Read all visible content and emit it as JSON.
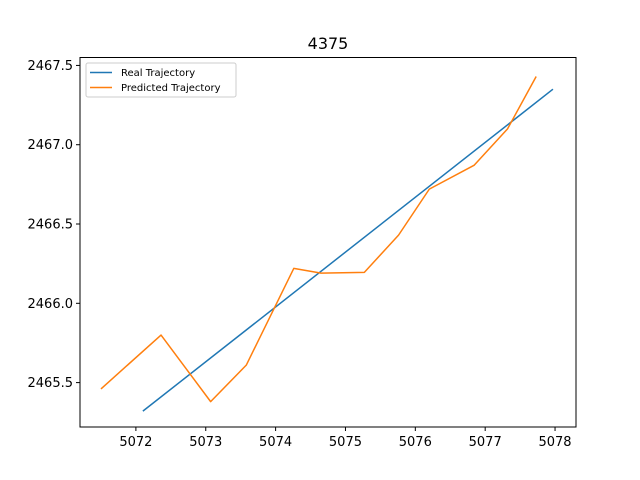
{
  "chart_data": {
    "type": "line",
    "title": "4375",
    "xlabel": "",
    "ylabel": "",
    "xlim": [
      5071.2,
      5078.3
    ],
    "ylim": [
      2465.22,
      2467.55
    ],
    "xticks": [
      5072,
      5073,
      5074,
      5075,
      5076,
      5077,
      5078
    ],
    "yticks": [
      2465.5,
      2466.0,
      2466.5,
      2467.0,
      2467.5
    ],
    "ytick_labels": [
      "2465.5",
      "2466.0",
      "2466.5",
      "2467.0",
      "2467.5"
    ],
    "grid": false,
    "legend_position": "top-left",
    "series": [
      {
        "name": "Real Trajectory",
        "color": "#1f77b4",
        "points": [
          [
            5072.1,
            2465.32
          ],
          [
            5077.97,
            2467.35
          ]
        ]
      },
      {
        "name": "Predicted Trajectory",
        "color": "#ff7f0e",
        "points": [
          [
            5071.5,
            2465.46
          ],
          [
            5072.36,
            2465.8
          ],
          [
            5073.07,
            2465.38
          ],
          [
            5073.58,
            2465.61
          ],
          [
            5074.26,
            2466.22
          ],
          [
            5074.65,
            2466.19
          ],
          [
            5075.27,
            2466.195
          ],
          [
            5075.76,
            2466.43
          ],
          [
            5076.2,
            2466.72
          ],
          [
            5076.84,
            2466.87
          ],
          [
            5077.32,
            2467.1
          ],
          [
            5077.73,
            2467.43
          ]
        ]
      }
    ]
  }
}
